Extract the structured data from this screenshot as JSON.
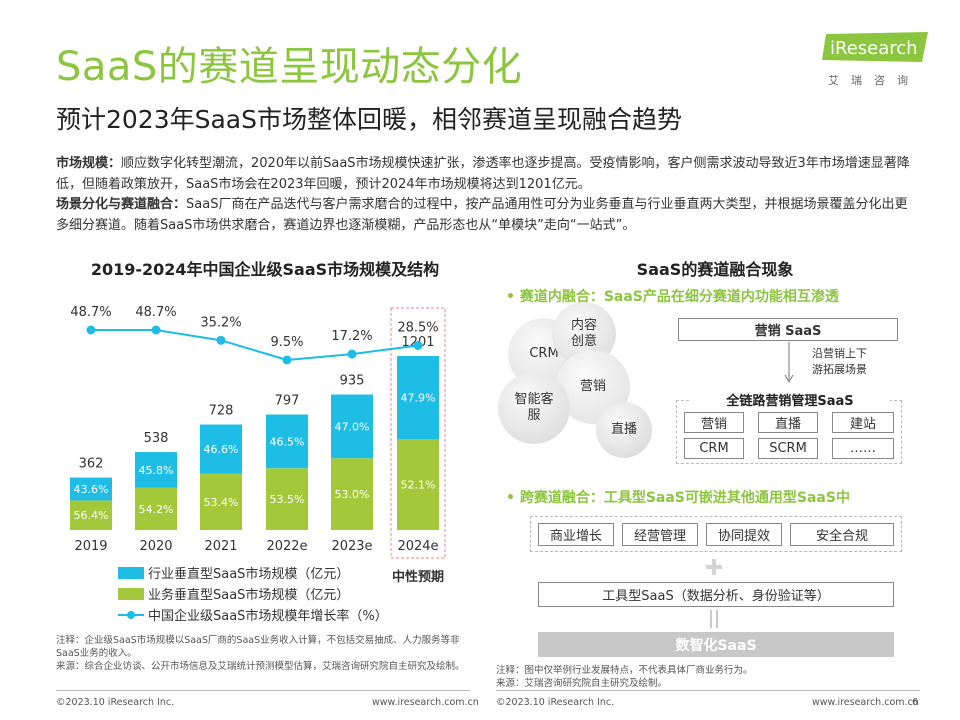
{
  "header": {
    "title": "SaaS的赛道呈现动态分化",
    "subtitle": "预计2023年SaaS市场整体回暖，相邻赛道呈现融合趋势",
    "logo_text": "iResearch",
    "logo_cn": "艾瑞咨询"
  },
  "paragraphs": [
    {
      "label": "市场规模：",
      "text": "顺应数字化转型潮流，2020年以前SaaS市场规模快速扩张，渗透率也逐步提高。受疫情影响，客户侧需求波动导致近3年市场增速显著降低，但随着政策放开，SaaS市场会在2023年回暖，预计2024年市场规模将达到1201亿元。"
    },
    {
      "label": "场景分化与赛道融合：",
      "text": "SaaS厂商在产品迭代与客户需求磨合的过程中，按产品通用性可分为业务垂直与行业垂直两大类型，并根据场景覆盖分化出更多细分赛道。随着SaaS市场供求磨合，赛道边界也逐渐模糊，产品形态也从“单模块”走向“一站式”。"
    }
  ],
  "chart_data": {
    "type": "bar",
    "title": "2019-2024年中国企业级SaaS市场规模及结构",
    "categories": [
      "2019",
      "2020",
      "2021",
      "2022e",
      "2023e",
      "2024e"
    ],
    "totals": [
      362,
      538,
      728,
      797,
      935,
      1201
    ],
    "series": [
      {
        "name": "业务垂直型SaaS市场规模（亿元）",
        "share_labels": [
          "56.4%",
          "54.2%",
          "53.4%",
          "53.5%",
          "53.0%",
          "52.1%"
        ],
        "share": [
          56.4,
          54.2,
          53.4,
          53.5,
          53.0,
          52.1
        ],
        "color": "#a3c93a"
      },
      {
        "name": "行业垂直型SaaS市场规模（亿元）",
        "share_labels": [
          "43.6%",
          "45.8%",
          "46.6%",
          "46.5%",
          "47.0%",
          "47.9%"
        ],
        "share": [
          43.6,
          45.8,
          46.6,
          46.5,
          47.0,
          47.9
        ],
        "color": "#1dbde6"
      },
      {
        "name": "中国企业级SaaS市场规模年增长率（%）",
        "type": "line",
        "values": [
          48.7,
          48.7,
          35.2,
          9.5,
          17.2,
          28.5
        ],
        "labels": [
          "48.7%",
          "48.7%",
          "35.2%",
          "9.5%",
          "17.2%",
          "28.5%"
        ],
        "color": "#1dbde6"
      }
    ],
    "highlight_label": "中性预期",
    "ylim": [
      0,
      1300
    ]
  },
  "legend": {
    "industry": "行业垂直型SaaS市场规模（亿元）",
    "business": "业务垂直型SaaS市场规模（亿元）",
    "growth": "中国企业级SaaS市场规模年增长率（%）",
    "neutral": "中性预期"
  },
  "notes_left": {
    "note": "注释：企业级SaaS市场规模以SaaS厂商的SaaS业务收入计算，不包括交易抽成、人力服务等非SaaS业务的收入。",
    "source": "来源：综合企业访谈、公开市场信息及艾瑞统计预测模型估算，艾瑞咨询研究院自主研究及绘制。"
  },
  "right_panel": {
    "title": "SaaS的赛道融合现象",
    "bullet1": "• 赛道内融合：SaaS产品在细分赛道内功能相互渗透",
    "bubbles": [
      "内容创意",
      "CRM",
      "营销",
      "智能客服",
      "直播"
    ],
    "top_box": "营销 SaaS",
    "arrow_note_1": "沿营销上下",
    "arrow_note_2": "游拓展场景",
    "group_title": "全链路营销管理SaaS",
    "grid": [
      "营销",
      "直播",
      "建站",
      "CRM",
      "SCRM",
      "……"
    ],
    "bullet2": "• 跨赛道融合：工具型SaaS可嵌进其他通用型SaaS中",
    "row_boxes": [
      "商业增长",
      "经营管理",
      "协同提效",
      "安全合规"
    ],
    "tool_box": "工具型SaaS（数据分析、身份验证等）",
    "bottom_bar": "数智化SaaS",
    "note": "注释：图中仅举例行业发展特点，不代表具体厂商业务行为。",
    "source": "来源：艾瑞咨询研究院自主研究及绘制。"
  },
  "footer": {
    "left_copy": "©2023.10 iResearch Inc.",
    "left_url": "www.iresearch.com.cn",
    "right_copy": "©2023.10 iResearch Inc.",
    "right_url": "www.iresearch.com.cn",
    "page": "6"
  }
}
